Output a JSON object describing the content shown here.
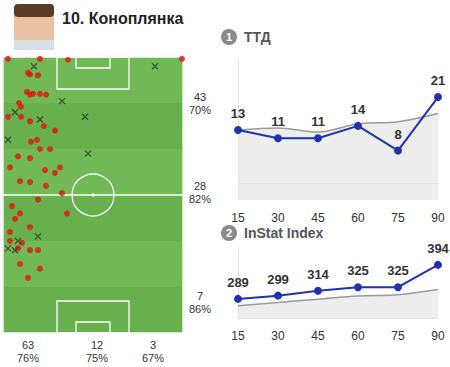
{
  "chart_data": [
    {
      "type": "scatter",
      "title": "10. Коноплянка",
      "xlim": [
        0,
        180
      ],
      "ylim": [
        0,
        300
      ],
      "tick_labels": false,
      "grid": false,
      "series": [
        {
          "color": "#e8120c",
          "marker": "circle",
          "values": [
            [
              5,
              298
            ],
            [
              37,
              298
            ],
            [
              65,
              297
            ],
            [
              179,
              298
            ],
            [
              25,
              283
            ],
            [
              27,
              281
            ],
            [
              35,
              280
            ],
            [
              24,
              262
            ],
            [
              30,
              260
            ],
            [
              37,
              260
            ],
            [
              43,
              259
            ],
            [
              27,
              259
            ],
            [
              16,
              250
            ],
            [
              18,
              246
            ],
            [
              5,
              235
            ],
            [
              18,
              235
            ],
            [
              27,
              230
            ],
            [
              41,
              225
            ],
            [
              52,
              220
            ],
            [
              34,
              210
            ],
            [
              28,
              208
            ],
            [
              37,
              200
            ],
            [
              47,
              200
            ],
            [
              15,
              192
            ],
            [
              27,
              190
            ],
            [
              7,
              180
            ],
            [
              42,
              177
            ],
            [
              52,
              174
            ],
            [
              17,
              165
            ],
            [
              27,
              164
            ],
            [
              43,
              160
            ],
            [
              59,
              152
            ],
            [
              35,
              145
            ],
            [
              9,
              138
            ],
            [
              17,
              130
            ],
            [
              12,
              124
            ],
            [
              27,
              115
            ],
            [
              7,
              110
            ],
            [
              19,
              98
            ],
            [
              27,
              90
            ],
            [
              35,
              90
            ],
            [
              17,
              75
            ],
            [
              37,
              70
            ],
            [
              25,
              60
            ],
            [
              7,
              100
            ],
            [
              15,
              92
            ],
            [
              57,
              180
            ],
            [
              64,
              130
            ]
          ]
        },
        {
          "color": "#2b3a2b",
          "marker": "x",
          "values": [
            [
              31,
              290
            ],
            [
              152,
              290
            ],
            [
              59,
              252
            ],
            [
              12,
              240
            ],
            [
              37,
              232
            ],
            [
              82,
              235
            ],
            [
              5,
              210
            ],
            [
              85,
              195
            ],
            [
              15,
              100
            ],
            [
              12,
              90
            ],
            [
              35,
              105
            ],
            [
              5,
              92
            ]
          ]
        }
      ],
      "zone_counts_right": [
        43,
        28,
        7
      ],
      "zone_accuracy_right": [
        70,
        82,
        86
      ],
      "zone_accuracy_right_labels": [
        "70%",
        "82%",
        "86%"
      ],
      "zone_counts_bottom": [
        63,
        12,
        3
      ],
      "zone_accuracy_bottom": [
        76,
        75,
        67
      ],
      "zone_accuracy_bottom_labels": [
        "76%",
        "75%",
        "67%"
      ]
    },
    {
      "type": "line",
      "title": "ТТД",
      "number": 1,
      "x": [
        15,
        30,
        45,
        60,
        75,
        90
      ],
      "xlim": [
        15,
        90
      ],
      "xticks": [
        15,
        30,
        45,
        60,
        75,
        90
      ],
      "ylim": [
        -4,
        30
      ],
      "tick_labels": "x",
      "grid": false,
      "series": [
        {
          "type": "area",
          "color": "#9a9a9a",
          "marker": "none",
          "values": [
            13,
            13.5,
            12.5,
            14.5,
            15,
            17
          ]
        },
        {
          "type": "line",
          "color": "#1f33b0",
          "marker": "circle",
          "data_labels": true,
          "values": [
            13,
            11,
            11,
            14,
            8,
            21
          ]
        }
      ]
    },
    {
      "type": "line",
      "title": "InStat Index",
      "number": 2,
      "x": [
        15,
        30,
        45,
        60,
        75,
        90
      ],
      "xlim": [
        15,
        90
      ],
      "xticks": [
        15,
        30,
        45,
        60,
        75,
        90
      ],
      "ylim": [
        230,
        440
      ],
      "tick_labels": "x",
      "grid": false,
      "series": [
        {
          "type": "area",
          "color": "#9a9a9a",
          "marker": "none",
          "values": [
            268,
            278,
            288,
            298,
            302,
            318
          ]
        },
        {
          "type": "line",
          "color": "#1f33b0",
          "marker": "circle",
          "data_labels": true,
          "values": [
            289,
            299,
            314,
            325,
            325,
            394
          ]
        }
      ]
    }
  ]
}
